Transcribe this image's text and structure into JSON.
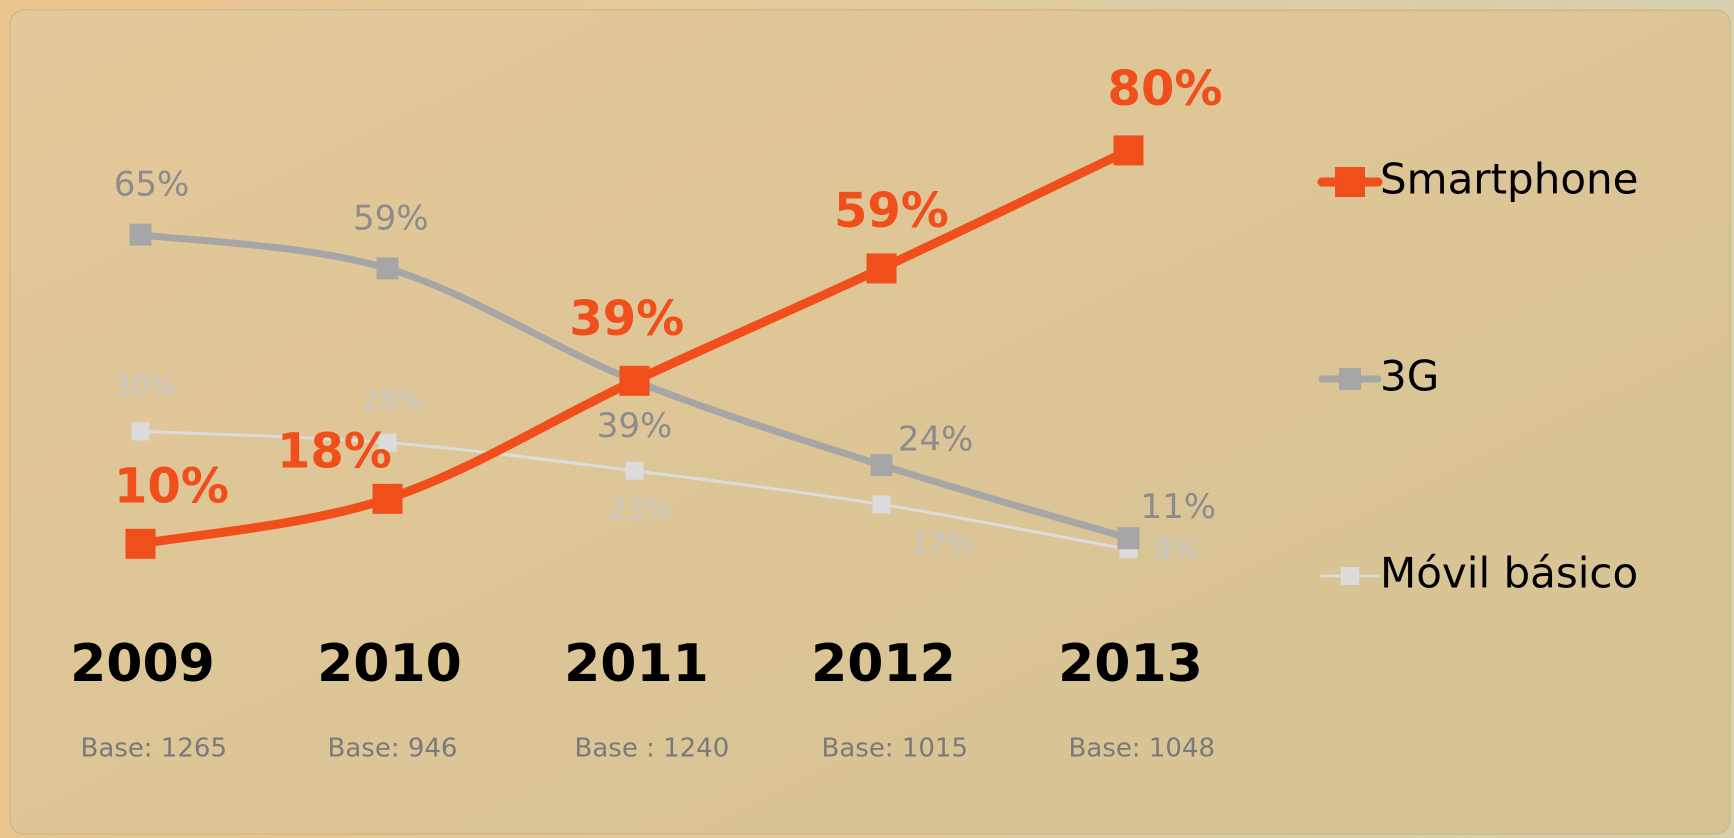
{
  "chart_data": {
    "type": "line",
    "categories": [
      "2009",
      "2010",
      "2011",
      "2012",
      "2013"
    ],
    "base_labels": [
      "Base: 1265",
      "Base: 946",
      "Base : 1240",
      "Base: 1015",
      "Base: 1048"
    ],
    "series": [
      {
        "name": "Smartphone",
        "color": "#f04e1a",
        "values": [
          10,
          18,
          39,
          59,
          80
        ],
        "value_labels": [
          "10%",
          "18%",
          "39%",
          "59%",
          "80%"
        ]
      },
      {
        "name": "3G",
        "color": "#a6a6a6",
        "values": [
          65,
          59,
          39,
          24,
          11
        ],
        "value_labels": [
          "65%",
          "59%",
          "39%",
          "24%",
          "11%"
        ]
      },
      {
        "name": "Móvil básico",
        "color": "#dcdcdc",
        "values": [
          30,
          28,
          23,
          17,
          9
        ],
        "value_labels": [
          "30%",
          "28%",
          "23%",
          "17%",
          "9%"
        ]
      }
    ],
    "ylim": [
      0,
      100
    ],
    "legend": "right"
  }
}
